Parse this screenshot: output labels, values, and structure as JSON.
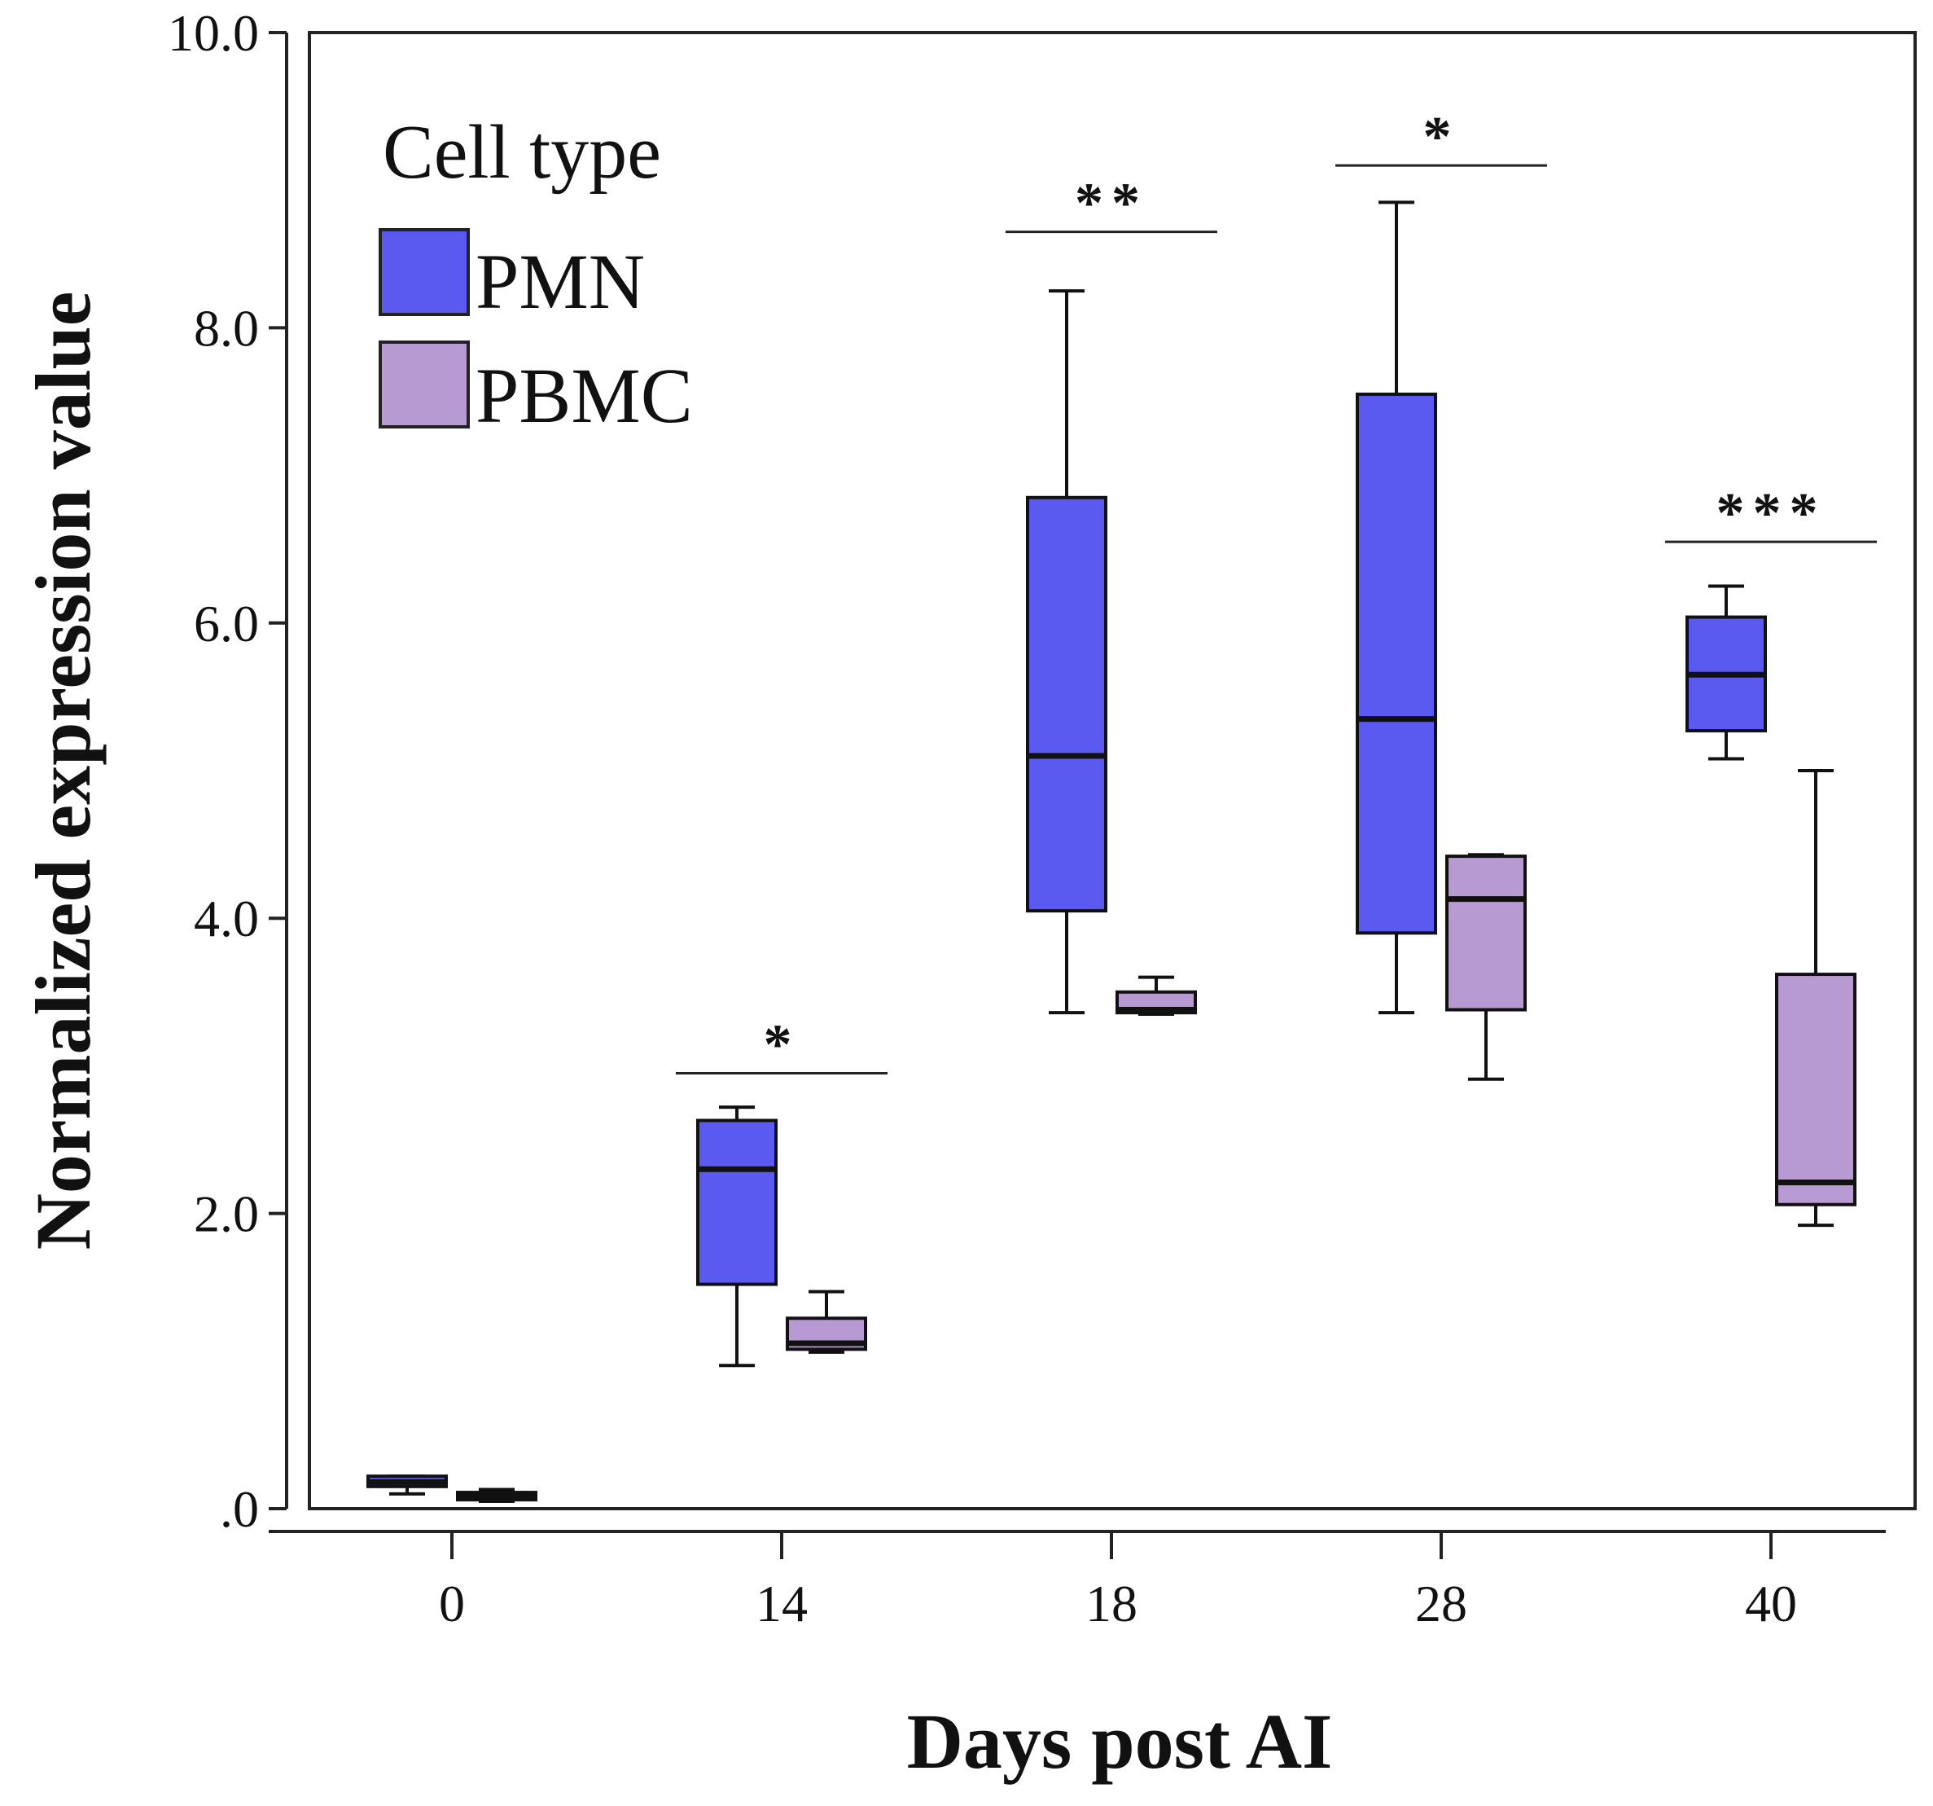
{
  "chart_data": {
    "type": "boxplot",
    "xlabel": "Days post AI",
    "ylabel": "Normalized expression value",
    "ylim": [
      0,
      10
    ],
    "yticks": [
      0,
      2,
      4,
      6,
      8,
      10
    ],
    "ytick_labels": [
      ".0",
      "2.0",
      "4.0",
      "6.0",
      "8.0",
      "10.0"
    ],
    "categories": [
      "0",
      "14",
      "18",
      "28",
      "40"
    ],
    "legend": {
      "title": "Cell type",
      "position": "top-left"
    },
    "series": [
      {
        "name": "PMN",
        "color": "#5a5af0",
        "boxes": [
          {
            "min": 0.1,
            "q1": 0.15,
            "median": 0.18,
            "q3": 0.22,
            "max": 0.22
          },
          {
            "min": 0.97,
            "q1": 1.52,
            "median": 2.3,
            "q3": 2.63,
            "max": 2.72
          },
          {
            "min": 3.36,
            "q1": 4.05,
            "median": 5.1,
            "q3": 6.85,
            "max": 8.25
          },
          {
            "min": 3.36,
            "q1": 3.9,
            "median": 5.35,
            "q3": 7.55,
            "max": 8.85
          },
          {
            "min": 5.08,
            "q1": 5.27,
            "median": 5.65,
            "q3": 6.04,
            "max": 6.25
          }
        ]
      },
      {
        "name": "PBMC",
        "color": "#b89ad2",
        "boxes": [
          {
            "min": 0.05,
            "q1": 0.06,
            "median": 0.08,
            "q3": 0.11,
            "max": 0.13
          },
          {
            "min": 1.06,
            "q1": 1.08,
            "median": 1.12,
            "q3": 1.29,
            "max": 1.47
          },
          {
            "min": 3.35,
            "q1": 3.36,
            "median": 3.38,
            "q3": 3.5,
            "max": 3.6
          },
          {
            "min": 2.91,
            "q1": 3.38,
            "median": 4.13,
            "q3": 4.42,
            "max": 4.43
          },
          {
            "min": 1.92,
            "q1": 2.06,
            "median": 2.21,
            "q3": 3.62,
            "max": 5.0
          }
        ]
      }
    ],
    "significance": [
      {
        "category": "14",
        "label": "*",
        "y": 2.95
      },
      {
        "category": "18",
        "label": "**",
        "y": 8.65
      },
      {
        "category": "28",
        "label": "*",
        "y": 9.1
      },
      {
        "category": "40",
        "label": "***",
        "y": 6.55
      }
    ]
  }
}
